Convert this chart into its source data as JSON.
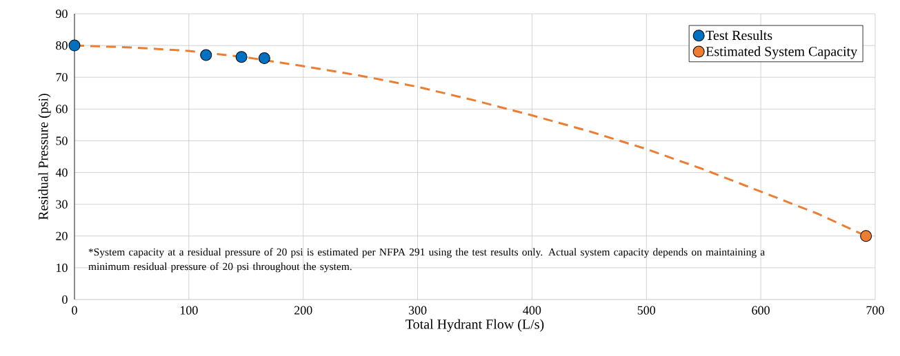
{
  "chart_data": {
    "type": "scatter",
    "xlabel": "Total Hydrant Flow (L/s)",
    "ylabel": "Residual Pressure (psi)",
    "xlim": [
      0,
      700
    ],
    "xticks": [
      0,
      100,
      200,
      300,
      400,
      500,
      600,
      700
    ],
    "ylim": [
      0,
      90
    ],
    "yticks": [
      0,
      10,
      20,
      30,
      40,
      50,
      60,
      70,
      80,
      90
    ],
    "grid": true,
    "legend": "top right",
    "series": [
      {
        "type": "line",
        "color": "#ed7d31",
        "line_style": "dashed",
        "marker": "none",
        "x": [
          0,
          50,
          100,
          150,
          200,
          250,
          300,
          350,
          400,
          450,
          500,
          550,
          600,
          650,
          692
        ],
        "values": [
          80,
          79.4,
          78.3,
          76.3,
          73.5,
          70.5,
          67,
          62.7,
          58,
          53,
          47.4,
          41,
          34,
          27,
          20
        ]
      },
      {
        "name": "Test Results",
        "color": "#0070c0",
        "marker": "circle",
        "x": [
          0,
          115,
          146,
          166
        ],
        "values": [
          80,
          77,
          76.4,
          76
        ]
      },
      {
        "name": "Estimated System Capacity",
        "color": "#ed7d31",
        "marker": "circle",
        "x": [
          692
        ],
        "values": [
          20
        ]
      }
    ],
    "annotations": [
      "*System capacity at a residual pressure of 20 psi is estimated per NFPA 291 using the test results only. Actual system capacity depends on maintaining a minimum residual pressure of 20 psi throughout the system."
    ]
  }
}
